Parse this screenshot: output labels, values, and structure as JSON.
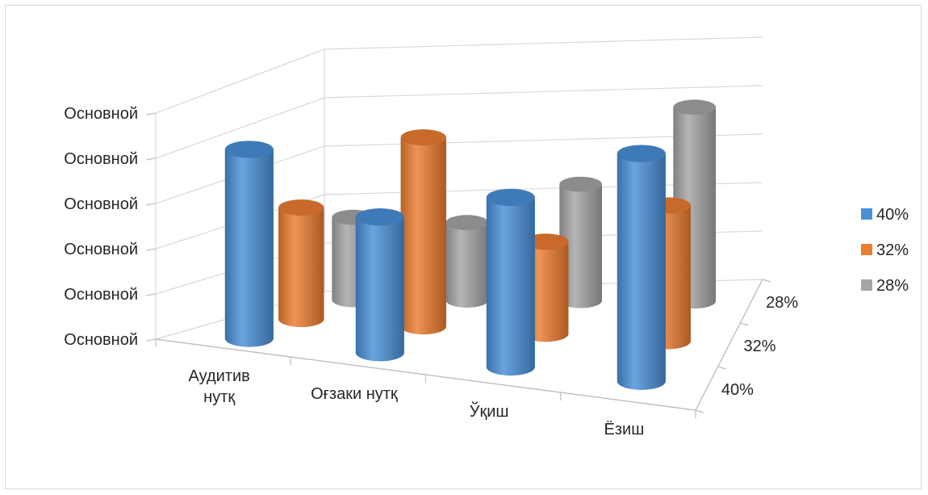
{
  "chart_data": {
    "type": "bar",
    "title": "",
    "xlabel": "",
    "ylabel": "",
    "categories": [
      "Аудитив\nнутқ",
      "Оғзаки нутқ",
      "Ўқиш",
      "Ёзиш"
    ],
    "y_tick_labels": [
      "Основной",
      "Основной",
      "Основной",
      "Основной",
      "Основной",
      "Основной"
    ],
    "depth_tick_labels": [
      "40%",
      "32%",
      "28%"
    ],
    "ylim": [
      0,
      5
    ],
    "grid": true,
    "legend": "right",
    "series": [
      {
        "name": "40%",
        "color": "#4a90d9",
        "values": [
          3.9,
          2.8,
          3.5,
          4.7
        ]
      },
      {
        "name": "32%",
        "color": "#ed7d31",
        "values": [
          2.3,
          3.9,
          1.9,
          2.8
        ]
      },
      {
        "name": "28%",
        "color": "#a5a5a5",
        "values": [
          1.7,
          1.6,
          2.4,
          4.0
        ]
      }
    ]
  }
}
